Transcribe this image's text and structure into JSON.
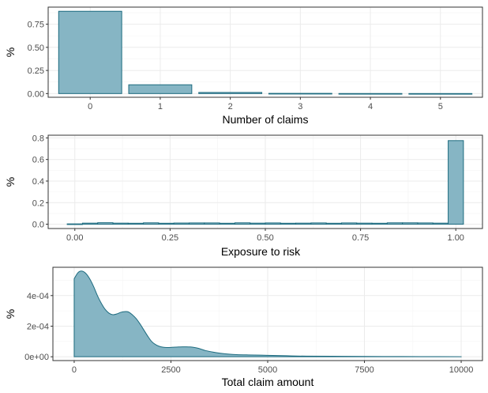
{
  "style": {
    "fill": "#86b5c4",
    "stroke": "#1d6b7f",
    "grid": "#ebebeb",
    "border": "#333333"
  },
  "chart_data": [
    {
      "type": "bar",
      "xlabel": "Number of claims",
      "ylabel": "%",
      "categories": [
        "0",
        "1",
        "2",
        "3",
        "4",
        "5"
      ],
      "values": [
        0.89,
        0.095,
        0.012,
        0.002,
        0.0005,
        0.0002
      ],
      "ylim": [
        -0.04,
        0.935
      ],
      "yticks": [
        0.0,
        0.25,
        0.5,
        0.75
      ],
      "ytick_labels": [
        "0.00",
        "0.25",
        "0.50",
        "0.75"
      ],
      "grid": true
    },
    {
      "type": "bar",
      "subtype": "histogram",
      "xlabel": "Exposure to risk",
      "ylabel": "%",
      "bin_width": 0.04,
      "bin_centers": [
        0.0,
        0.04,
        0.08,
        0.12,
        0.16,
        0.2,
        0.24,
        0.28,
        0.32,
        0.36,
        0.4,
        0.44,
        0.48,
        0.52,
        0.56,
        0.6,
        0.64,
        0.68,
        0.72,
        0.76,
        0.8,
        0.84,
        0.88,
        0.92,
        0.96,
        1.0
      ],
      "values": [
        0.003,
        0.01,
        0.014,
        0.01,
        0.009,
        0.013,
        0.009,
        0.011,
        0.012,
        0.012,
        0.009,
        0.013,
        0.01,
        0.012,
        0.009,
        0.01,
        0.012,
        0.009,
        0.012,
        0.01,
        0.009,
        0.013,
        0.013,
        0.012,
        0.01,
        0.775
      ],
      "xlim": [
        -0.07,
        1.07
      ],
      "xticks": [
        0.0,
        0.25,
        0.5,
        0.75,
        1.0
      ],
      "xtick_labels": [
        "0.00",
        "0.25",
        "0.50",
        "0.75",
        "1.00"
      ],
      "ylim": [
        -0.04,
        0.825
      ],
      "yticks": [
        0.0,
        0.2,
        0.4,
        0.6,
        0.8
      ],
      "ytick_labels": [
        "0.0",
        "0.2",
        "0.4",
        "0.6",
        "0.8"
      ],
      "grid": true
    },
    {
      "type": "area",
      "subtype": "density",
      "xlabel": "Total claim amount",
      "ylabel": "%",
      "x": [
        0,
        100,
        200,
        300,
        400,
        500,
        600,
        700,
        800,
        900,
        1000,
        1100,
        1200,
        1300,
        1400,
        1500,
        1600,
        1700,
        1800,
        1900,
        2000,
        2100,
        2200,
        2300,
        2400,
        2500,
        2600,
        2700,
        2800,
        2900,
        3000,
        3100,
        3200,
        3300,
        3400,
        3600,
        3800,
        4000,
        4200,
        4500,
        5000,
        5500,
        6000,
        7000,
        8000,
        9000,
        10000
      ],
      "y": [
        0.00051,
        0.00055,
        0.00056,
        0.000545,
        0.00051,
        0.00046,
        0.0004,
        0.00035,
        0.00031,
        0.000285,
        0.000275,
        0.00028,
        0.00029,
        0.000295,
        0.000293,
        0.000275,
        0.00025,
        0.000215,
        0.000175,
        0.000135,
        0.0001,
        8e-05,
        6.8e-05,
        6.2e-05,
        6e-05,
        6.1e-05,
        6.3e-05,
        6.4e-05,
        6.5e-05,
        6.5e-05,
        6.4e-05,
        6.1e-05,
        5.6e-05,
        4.8e-05,
        4e-05,
        3e-05,
        2.2e-05,
        1.7e-05,
        1.4e-05,
        1.2e-05,
        9.5e-06,
        6.5e-06,
        4e-06,
        2.8e-06,
        1.8e-06,
        1e-06,
        5e-07
      ],
      "xlim": [
        -550,
        10550
      ],
      "xticks": [
        0,
        2500,
        5000,
        7500,
        10000
      ],
      "xtick_labels": [
        "0",
        "2500",
        "5000",
        "7500",
        "10000"
      ],
      "ylim": [
        -2.5e-05,
        0.000585
      ],
      "yticks": [
        0,
        0.0002,
        0.0004
      ],
      "ytick_labels": [
        "0e+00",
        "2e-04",
        "4e-04"
      ],
      "grid": true
    }
  ]
}
